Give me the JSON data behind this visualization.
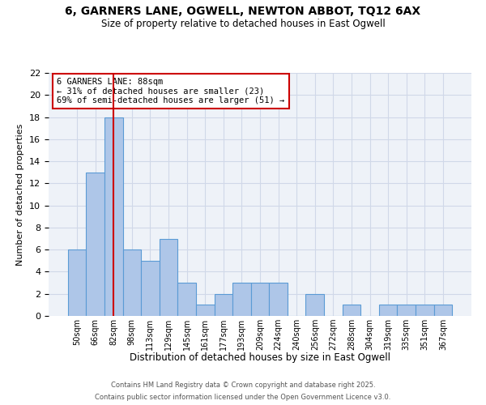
{
  "title1": "6, GARNERS LANE, OGWELL, NEWTON ABBOT, TQ12 6AX",
  "title2": "Size of property relative to detached houses in East Ogwell",
  "xlabel": "Distribution of detached houses by size in East Ogwell",
  "ylabel": "Number of detached properties",
  "bar_values": [
    6,
    13,
    18,
    6,
    5,
    7,
    3,
    1,
    2,
    3,
    3,
    3,
    0,
    2,
    0,
    1,
    0,
    1,
    1,
    1,
    1
  ],
  "bin_labels": [
    "50sqm",
    "66sqm",
    "82sqm",
    "98sqm",
    "113sqm",
    "129sqm",
    "145sqm",
    "161sqm",
    "177sqm",
    "193sqm",
    "209sqm",
    "224sqm",
    "240sqm",
    "256sqm",
    "272sqm",
    "288sqm",
    "304sqm",
    "319sqm",
    "335sqm",
    "351sqm",
    "367sqm"
  ],
  "bar_color": "#aec6e8",
  "bar_edge_color": "#5b9bd5",
  "grid_color": "#d0d8e8",
  "bg_color": "#eef2f8",
  "vline_x": 2,
  "vline_color": "#cc0000",
  "annotation_title": "6 GARNERS LANE: 88sqm",
  "annotation_line1": "← 31% of detached houses are smaller (23)",
  "annotation_line2": "69% of semi-detached houses are larger (51) →",
  "box_color": "#cc0000",
  "ylim": [
    0,
    22
  ],
  "yticks": [
    0,
    2,
    4,
    6,
    8,
    10,
    12,
    14,
    16,
    18,
    20,
    22
  ],
  "footer1": "Contains HM Land Registry data © Crown copyright and database right 2025.",
  "footer2": "Contains public sector information licensed under the Open Government Licence v3.0."
}
